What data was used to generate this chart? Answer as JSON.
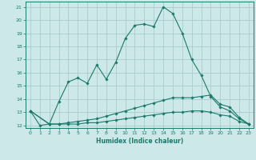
{
  "xlabel": "Humidex (Indice chaleur)",
  "bg_color": "#cce8e8",
  "line_color": "#1a7a6a",
  "grid_color": "#aacccc",
  "xlim": [
    -0.5,
    23.5
  ],
  "ylim": [
    11.8,
    21.4
  ],
  "xticks": [
    0,
    1,
    2,
    3,
    4,
    5,
    6,
    7,
    8,
    9,
    10,
    11,
    12,
    13,
    14,
    15,
    16,
    17,
    18,
    19,
    20,
    21,
    22,
    23
  ],
  "yticks": [
    12,
    13,
    14,
    15,
    16,
    17,
    18,
    19,
    20,
    21
  ],
  "line1_x": [
    0,
    1,
    2,
    3,
    4,
    5,
    6,
    7,
    8,
    9,
    10,
    11,
    12,
    13,
    14,
    15,
    16,
    17,
    18,
    19,
    20,
    21,
    22,
    23
  ],
  "line1_y": [
    13.1,
    12.0,
    12.1,
    13.8,
    15.3,
    15.6,
    15.2,
    16.6,
    15.5,
    16.8,
    18.6,
    19.6,
    19.7,
    19.5,
    21.0,
    20.5,
    19.0,
    17.0,
    15.8,
    14.2,
    13.4,
    13.1,
    12.5,
    12.1
  ],
  "line2_x": [
    0,
    2,
    3,
    4,
    5,
    6,
    7,
    8,
    9,
    10,
    11,
    12,
    13,
    14,
    15,
    16,
    17,
    18,
    19,
    20,
    21,
    22,
    23
  ],
  "line2_y": [
    13.1,
    12.1,
    12.1,
    12.2,
    12.3,
    12.4,
    12.5,
    12.7,
    12.9,
    13.1,
    13.3,
    13.5,
    13.7,
    13.9,
    14.1,
    14.1,
    14.1,
    14.2,
    14.3,
    13.6,
    13.4,
    12.6,
    12.1
  ],
  "line3_x": [
    0,
    2,
    3,
    4,
    5,
    6,
    7,
    8,
    9,
    10,
    11,
    12,
    13,
    14,
    15,
    16,
    17,
    18,
    19,
    20,
    21,
    22,
    23
  ],
  "line3_y": [
    13.1,
    12.1,
    12.1,
    12.1,
    12.1,
    12.2,
    12.2,
    12.3,
    12.4,
    12.5,
    12.6,
    12.7,
    12.8,
    12.9,
    13.0,
    13.0,
    13.1,
    13.1,
    13.0,
    12.8,
    12.7,
    12.3,
    12.1
  ]
}
